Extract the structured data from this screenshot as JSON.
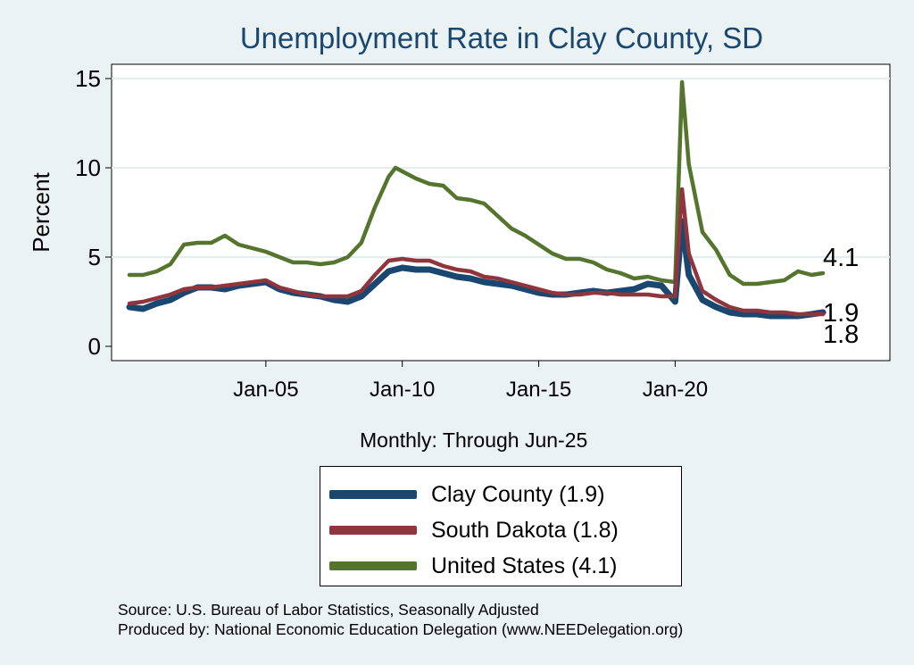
{
  "chart_data": {
    "type": "line",
    "title": "Unemployment Rate in Clay  County, SD",
    "ylabel": "Percent",
    "xlabel": "Monthly: Through Jun-25",
    "xlim": [
      "2000-01",
      "2025-06"
    ],
    "ylim": [
      0,
      15
    ],
    "yticks": [
      0,
      5,
      10,
      15
    ],
    "xticks": [
      "Jan-05",
      "Jan-10",
      "Jan-15",
      "Jan-20"
    ],
    "grid": true,
    "legend_position": "bottom",
    "series": [
      {
        "name": "Clay  County (1.9)",
        "color": "#1a476f",
        "end_label": "1.9",
        "points": [
          [
            "2000-01",
            2.2
          ],
          [
            "2000-07",
            2.1
          ],
          [
            "2001-01",
            2.4
          ],
          [
            "2001-07",
            2.6
          ],
          [
            "2002-01",
            3.0
          ],
          [
            "2002-07",
            3.3
          ],
          [
            "2003-01",
            3.3
          ],
          [
            "2003-07",
            3.2
          ],
          [
            "2004-01",
            3.4
          ],
          [
            "2004-07",
            3.5
          ],
          [
            "2005-01",
            3.6
          ],
          [
            "2005-07",
            3.2
          ],
          [
            "2006-01",
            3.0
          ],
          [
            "2006-07",
            2.9
          ],
          [
            "2007-01",
            2.8
          ],
          [
            "2007-07",
            2.6
          ],
          [
            "2008-01",
            2.5
          ],
          [
            "2008-07",
            2.8
          ],
          [
            "2009-01",
            3.5
          ],
          [
            "2009-07",
            4.2
          ],
          [
            "2010-01",
            4.4
          ],
          [
            "2010-07",
            4.3
          ],
          [
            "2011-01",
            4.3
          ],
          [
            "2011-07",
            4.1
          ],
          [
            "2012-01",
            3.9
          ],
          [
            "2012-07",
            3.8
          ],
          [
            "2013-01",
            3.6
          ],
          [
            "2013-07",
            3.5
          ],
          [
            "2014-01",
            3.4
          ],
          [
            "2014-07",
            3.2
          ],
          [
            "2015-01",
            3.0
          ],
          [
            "2015-07",
            2.9
          ],
          [
            "2016-01",
            2.9
          ],
          [
            "2016-07",
            3.0
          ],
          [
            "2017-01",
            3.1
          ],
          [
            "2017-07",
            3.0
          ],
          [
            "2018-01",
            3.1
          ],
          [
            "2018-07",
            3.2
          ],
          [
            "2019-01",
            3.5
          ],
          [
            "2019-07",
            3.4
          ],
          [
            "2020-01",
            2.5
          ],
          [
            "2020-04",
            7.0
          ],
          [
            "2020-07",
            4.0
          ],
          [
            "2021-01",
            2.6
          ],
          [
            "2021-07",
            2.2
          ],
          [
            "2022-01",
            1.9
          ],
          [
            "2022-07",
            1.8
          ],
          [
            "2023-01",
            1.8
          ],
          [
            "2023-07",
            1.7
          ],
          [
            "2024-01",
            1.7
          ],
          [
            "2024-07",
            1.7
          ],
          [
            "2025-01",
            1.8
          ],
          [
            "2025-06",
            1.9
          ]
        ]
      },
      {
        "name": "South Dakota (1.8)",
        "color": "#90353b",
        "end_label": "1.8",
        "points": [
          [
            "2000-01",
            2.4
          ],
          [
            "2000-07",
            2.5
          ],
          [
            "2001-01",
            2.7
          ],
          [
            "2001-07",
            2.9
          ],
          [
            "2002-01",
            3.2
          ],
          [
            "2002-07",
            3.3
          ],
          [
            "2003-01",
            3.3
          ],
          [
            "2003-07",
            3.4
          ],
          [
            "2004-01",
            3.5
          ],
          [
            "2004-07",
            3.6
          ],
          [
            "2005-01",
            3.7
          ],
          [
            "2005-07",
            3.3
          ],
          [
            "2006-01",
            3.1
          ],
          [
            "2006-07",
            2.9
          ],
          [
            "2007-01",
            2.8
          ],
          [
            "2007-07",
            2.8
          ],
          [
            "2008-01",
            2.8
          ],
          [
            "2008-07",
            3.1
          ],
          [
            "2009-01",
            4.0
          ],
          [
            "2009-07",
            4.8
          ],
          [
            "2010-01",
            4.9
          ],
          [
            "2010-07",
            4.8
          ],
          [
            "2011-01",
            4.8
          ],
          [
            "2011-07",
            4.5
          ],
          [
            "2012-01",
            4.3
          ],
          [
            "2012-07",
            4.2
          ],
          [
            "2013-01",
            3.9
          ],
          [
            "2013-07",
            3.8
          ],
          [
            "2014-01",
            3.6
          ],
          [
            "2014-07",
            3.4
          ],
          [
            "2015-01",
            3.2
          ],
          [
            "2015-07",
            3.0
          ],
          [
            "2016-01",
            2.9
          ],
          [
            "2016-07",
            2.9
          ],
          [
            "2017-01",
            3.0
          ],
          [
            "2017-07",
            3.0
          ],
          [
            "2018-01",
            2.9
          ],
          [
            "2018-07",
            2.9
          ],
          [
            "2019-01",
            2.9
          ],
          [
            "2019-07",
            2.8
          ],
          [
            "2020-01",
            2.8
          ],
          [
            "2020-04",
            8.8
          ],
          [
            "2020-07",
            5.2
          ],
          [
            "2021-01",
            3.1
          ],
          [
            "2021-07",
            2.6
          ],
          [
            "2022-01",
            2.2
          ],
          [
            "2022-07",
            2.0
          ],
          [
            "2023-01",
            2.0
          ],
          [
            "2023-07",
            1.9
          ],
          [
            "2024-01",
            1.9
          ],
          [
            "2024-07",
            1.8
          ],
          [
            "2025-01",
            1.8
          ],
          [
            "2025-06",
            1.8
          ]
        ]
      },
      {
        "name": "United States (4.1)",
        "color": "#55752f",
        "end_label": "4.1",
        "points": [
          [
            "2000-01",
            4.0
          ],
          [
            "2000-07",
            4.0
          ],
          [
            "2001-01",
            4.2
          ],
          [
            "2001-07",
            4.6
          ],
          [
            "2002-01",
            5.7
          ],
          [
            "2002-07",
            5.8
          ],
          [
            "2003-01",
            5.8
          ],
          [
            "2003-07",
            6.2
          ],
          [
            "2004-01",
            5.7
          ],
          [
            "2004-07",
            5.5
          ],
          [
            "2005-01",
            5.3
          ],
          [
            "2005-07",
            5.0
          ],
          [
            "2006-01",
            4.7
          ],
          [
            "2006-07",
            4.7
          ],
          [
            "2007-01",
            4.6
          ],
          [
            "2007-07",
            4.7
          ],
          [
            "2008-01",
            5.0
          ],
          [
            "2008-07",
            5.8
          ],
          [
            "2009-01",
            7.8
          ],
          [
            "2009-07",
            9.5
          ],
          [
            "2009-10",
            10.0
          ],
          [
            "2010-07",
            9.4
          ],
          [
            "2011-01",
            9.1
          ],
          [
            "2011-07",
            9.0
          ],
          [
            "2012-01",
            8.3
          ],
          [
            "2012-07",
            8.2
          ],
          [
            "2013-01",
            8.0
          ],
          [
            "2013-07",
            7.3
          ],
          [
            "2014-01",
            6.6
          ],
          [
            "2014-07",
            6.2
          ],
          [
            "2015-01",
            5.7
          ],
          [
            "2015-07",
            5.2
          ],
          [
            "2016-01",
            4.9
          ],
          [
            "2016-07",
            4.9
          ],
          [
            "2017-01",
            4.7
          ],
          [
            "2017-07",
            4.3
          ],
          [
            "2018-01",
            4.1
          ],
          [
            "2018-07",
            3.8
          ],
          [
            "2019-01",
            3.9
          ],
          [
            "2019-07",
            3.7
          ],
          [
            "2020-01",
            3.6
          ],
          [
            "2020-04",
            14.8
          ],
          [
            "2020-07",
            10.2
          ],
          [
            "2021-01",
            6.4
          ],
          [
            "2021-07",
            5.4
          ],
          [
            "2022-01",
            4.0
          ],
          [
            "2022-07",
            3.5
          ],
          [
            "2023-01",
            3.5
          ],
          [
            "2023-07",
            3.6
          ],
          [
            "2024-01",
            3.7
          ],
          [
            "2024-07",
            4.2
          ],
          [
            "2025-01",
            4.0
          ],
          [
            "2025-06",
            4.1
          ]
        ]
      }
    ]
  },
  "source_text": "Source: U.S. Bureau of Labor Statistics, Seasonally Adjusted",
  "produced_by_text": "Produced by: National Economic Education Delegation (www.NEEDelegation.org)"
}
